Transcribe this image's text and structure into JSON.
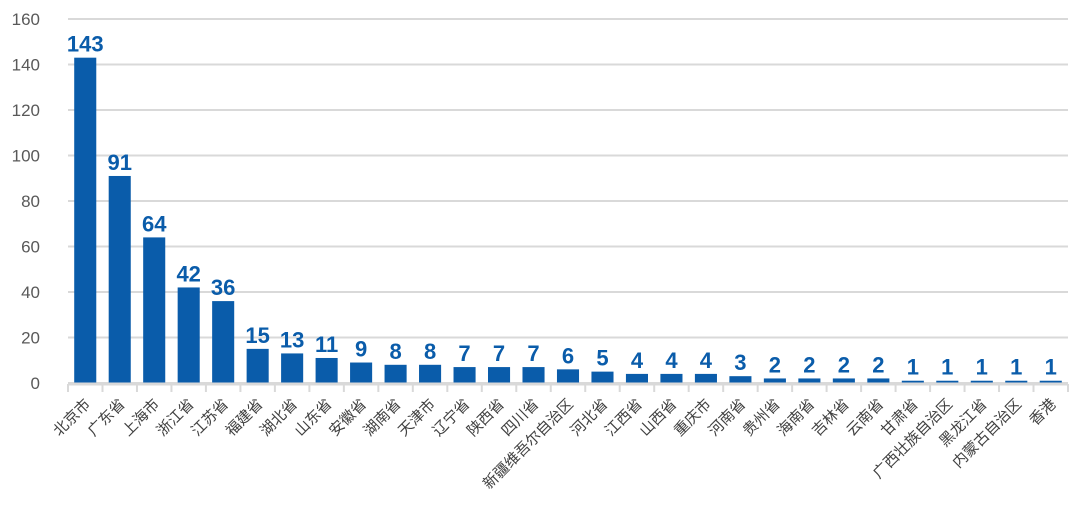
{
  "chart_data": {
    "type": "bar",
    "title": "",
    "xlabel": "",
    "ylabel": "",
    "ylim": [
      0,
      160
    ],
    "yticks": [
      0,
      20,
      40,
      60,
      80,
      100,
      120,
      140,
      160
    ],
    "grid": true,
    "legend": null,
    "bar_color": "#0a5caa",
    "grid_color": "#d9d9d9",
    "categories": [
      "北京市",
      "广东省",
      "上海市",
      "浙江省",
      "江苏省",
      "福建省",
      "湖北省",
      "山东省",
      "安徽省",
      "湖南省",
      "天津市",
      "辽宁省",
      "陕西省",
      "四川省",
      "新疆维吾尔自治区",
      "河北省",
      "江西省",
      "山西省",
      "重庆市",
      "河南省",
      "贵州省",
      "海南省",
      "吉林省",
      "云南省",
      "甘肃省",
      "广西壮族自治区",
      "黑龙江省",
      "内蒙古自治区",
      "香港"
    ],
    "values": [
      143,
      91,
      64,
      42,
      36,
      15,
      13,
      11,
      9,
      8,
      8,
      7,
      7,
      7,
      6,
      5,
      4,
      4,
      4,
      3,
      2,
      2,
      2,
      2,
      1,
      1,
      1,
      1,
      1
    ]
  }
}
